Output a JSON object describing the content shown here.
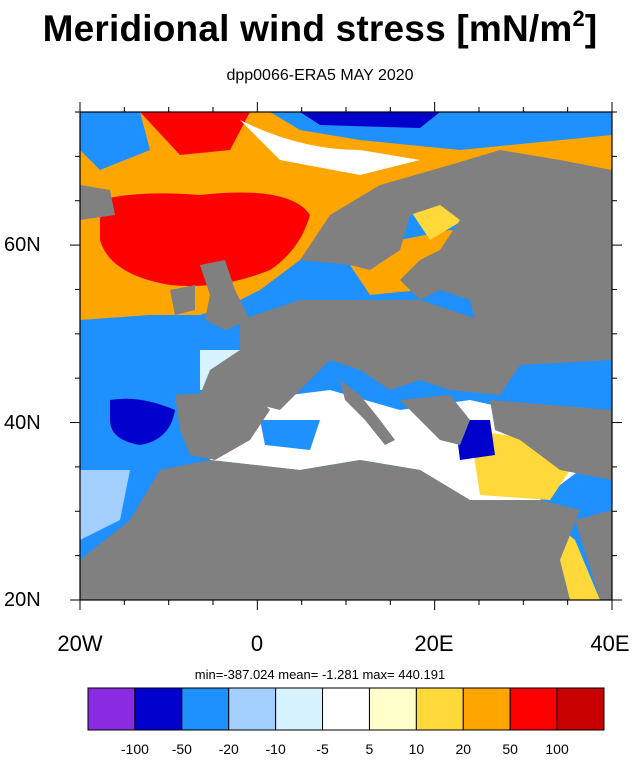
{
  "header": {
    "title_main": "Meridional wind stress [mN/m",
    "title_sup": "2",
    "title_end": "]",
    "subtitle": "dpp0066-ERA5  MAY 2020"
  },
  "axes": {
    "lon_labels": [
      "20W",
      "0",
      "20E",
      "40E"
    ],
    "lat_labels": [
      "60N",
      "40N",
      "20N"
    ]
  },
  "stats": "min=-387.024  mean=  -1.281  max= 440.191",
  "colorbar": {
    "colors": [
      "#8a2be2",
      "#0000cd",
      "#1e90ff",
      "#a3cfff",
      "#d6f3ff",
      "#ffffff",
      "#ffffcc",
      "#ffd839",
      "#ffa500",
      "#ff0000",
      "#c80000"
    ],
    "labels": [
      "-100",
      "-50",
      "-20",
      "-10",
      "-5",
      "5",
      "10",
      "20",
      "50",
      "100"
    ]
  },
  "map": {
    "land_color": "#808080",
    "domain": "20W–40E, 20N–75N"
  }
}
